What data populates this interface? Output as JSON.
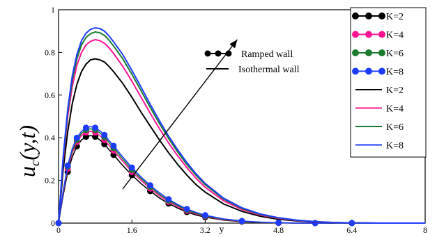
{
  "chart_data": {
    "type": "line",
    "ylabel": "u_c(y,t)",
    "ylabel_parts": {
      "var": "u",
      "sub": "c",
      "args": "(y,t)"
    },
    "xlabel": "y",
    "xlim": [
      0,
      8
    ],
    "ylim": [
      0,
      1
    ],
    "xticks": [
      "0",
      "1.6",
      "3.2",
      "4.8",
      "6.4",
      "8"
    ],
    "yticks": [
      "0",
      "0.2",
      "0.4",
      "0.6",
      "0.8",
      "1"
    ],
    "grid": false,
    "legend_placement": "top-right",
    "annotation_legend": {
      "ramped_label": "Ramped wall",
      "isothermal_label": "Isothermal wall"
    },
    "arrow": {
      "from": [
        1.4,
        0.16
      ],
      "to": [
        3.9,
        0.86
      ],
      "direction": "increasing K"
    },
    "series": [
      {
        "name": "K=2",
        "wall": "Ramped",
        "style": "line+markers",
        "color": "#000000",
        "x": [
          0,
          0.1,
          0.2,
          0.3,
          0.4,
          0.5,
          0.6,
          0.7,
          0.8,
          0.9,
          1,
          1.1,
          1.2,
          1.4,
          1.6,
          1.8,
          2,
          2.2,
          2.4,
          2.6,
          2.8,
          3,
          3.2,
          3.6,
          4,
          4.4,
          4.8,
          5.2,
          5.6,
          6,
          6.4,
          7,
          8
        ],
        "y": [
          0,
          0.13,
          0.24,
          0.31,
          0.36,
          0.39,
          0.405,
          0.41,
          0.405,
          0.39,
          0.37,
          0.345,
          0.32,
          0.27,
          0.225,
          0.185,
          0.15,
          0.118,
          0.092,
          0.07,
          0.052,
          0.038,
          0.028,
          0.014,
          0.007,
          0.003,
          0.001,
          0,
          0,
          0,
          0,
          0,
          0
        ]
      },
      {
        "name": "K=4",
        "wall": "Ramped",
        "style": "line+markers",
        "color": "#ff1493",
        "x": [
          0,
          0.1,
          0.2,
          0.3,
          0.4,
          0.5,
          0.6,
          0.7,
          0.8,
          0.9,
          1,
          1.1,
          1.2,
          1.4,
          1.6,
          1.8,
          2,
          2.2,
          2.4,
          2.6,
          2.8,
          3,
          3.2,
          3.6,
          4,
          4.4,
          4.8,
          5.2,
          5.6,
          6,
          6.4,
          7,
          8
        ],
        "y": [
          0,
          0.14,
          0.255,
          0.33,
          0.38,
          0.41,
          0.425,
          0.43,
          0.425,
          0.41,
          0.39,
          0.365,
          0.34,
          0.29,
          0.24,
          0.2,
          0.162,
          0.128,
          0.1,
          0.077,
          0.058,
          0.043,
          0.032,
          0.016,
          0.008,
          0.004,
          0.0015,
          0,
          0,
          0,
          0,
          0,
          0
        ]
      },
      {
        "name": "K=6",
        "wall": "Ramped",
        "style": "line+markers",
        "color": "#1a7a2e",
        "x": [
          0,
          0.1,
          0.2,
          0.3,
          0.4,
          0.5,
          0.6,
          0.7,
          0.8,
          0.9,
          1,
          1.1,
          1.2,
          1.4,
          1.6,
          1.8,
          2,
          2.2,
          2.4,
          2.6,
          2.8,
          3,
          3.2,
          3.6,
          4,
          4.4,
          4.8,
          5.2,
          5.6,
          6,
          6.4,
          7,
          8
        ],
        "y": [
          0,
          0.145,
          0.265,
          0.34,
          0.39,
          0.42,
          0.437,
          0.442,
          0.437,
          0.423,
          0.403,
          0.378,
          0.352,
          0.3,
          0.25,
          0.208,
          0.17,
          0.135,
          0.106,
          0.082,
          0.062,
          0.046,
          0.034,
          0.018,
          0.009,
          0.004,
          0.002,
          0,
          0,
          0,
          0,
          0,
          0
        ]
      },
      {
        "name": "K=8",
        "wall": "Ramped",
        "style": "line+markers",
        "color": "#1e3cff",
        "x": [
          0,
          0.1,
          0.2,
          0.3,
          0.4,
          0.5,
          0.6,
          0.7,
          0.8,
          0.9,
          1,
          1.1,
          1.2,
          1.4,
          1.6,
          1.8,
          2,
          2.2,
          2.4,
          2.6,
          2.8,
          3,
          3.2,
          3.6,
          4,
          4.4,
          4.8,
          5.2,
          5.6,
          6,
          6.4,
          7,
          8
        ],
        "y": [
          0,
          0.15,
          0.27,
          0.35,
          0.4,
          0.43,
          0.447,
          0.452,
          0.447,
          0.433,
          0.413,
          0.388,
          0.362,
          0.31,
          0.26,
          0.216,
          0.177,
          0.142,
          0.112,
          0.087,
          0.066,
          0.05,
          0.037,
          0.02,
          0.01,
          0.005,
          0.002,
          0,
          0,
          0,
          0,
          0,
          0
        ]
      },
      {
        "name": "K=2",
        "wall": "Isothermal",
        "style": "line",
        "color": "#000000",
        "x": [
          0,
          0.1,
          0.2,
          0.3,
          0.4,
          0.5,
          0.6,
          0.7,
          0.8,
          0.9,
          1,
          1.1,
          1.2,
          1.4,
          1.6,
          1.8,
          2,
          2.2,
          2.4,
          2.6,
          2.8,
          3,
          3.2,
          3.6,
          4,
          4.4,
          4.8,
          5.2,
          5.6,
          6,
          6.4,
          7,
          8
        ],
        "y": [
          0,
          0.25,
          0.43,
          0.56,
          0.65,
          0.71,
          0.745,
          0.765,
          0.77,
          0.765,
          0.755,
          0.735,
          0.71,
          0.655,
          0.59,
          0.52,
          0.455,
          0.39,
          0.33,
          0.275,
          0.225,
          0.18,
          0.145,
          0.09,
          0.055,
          0.032,
          0.018,
          0.01,
          0.005,
          0.002,
          0.001,
          0,
          0
        ]
      },
      {
        "name": "K=4",
        "wall": "Isothermal",
        "style": "line",
        "color": "#ff1493",
        "x": [
          0,
          0.1,
          0.2,
          0.3,
          0.4,
          0.5,
          0.6,
          0.7,
          0.8,
          0.9,
          1,
          1.1,
          1.2,
          1.4,
          1.6,
          1.8,
          2,
          2.2,
          2.4,
          2.6,
          2.8,
          3,
          3.2,
          3.6,
          4,
          4.4,
          4.8,
          5.2,
          5.6,
          6,
          6.4,
          7,
          8
        ],
        "y": [
          0,
          0.29,
          0.5,
          0.64,
          0.74,
          0.8,
          0.835,
          0.852,
          0.86,
          0.855,
          0.843,
          0.822,
          0.795,
          0.735,
          0.665,
          0.59,
          0.515,
          0.443,
          0.376,
          0.315,
          0.26,
          0.21,
          0.168,
          0.105,
          0.064,
          0.038,
          0.022,
          0.012,
          0.006,
          0.003,
          0.001,
          0,
          0
        ]
      },
      {
        "name": "K=6",
        "wall": "Isothermal",
        "style": "line",
        "color": "#1a7a2e",
        "x": [
          0,
          0.1,
          0.2,
          0.3,
          0.4,
          0.5,
          0.6,
          0.7,
          0.8,
          0.9,
          1,
          1.1,
          1.2,
          1.4,
          1.6,
          1.8,
          2,
          2.2,
          2.4,
          2.6,
          2.8,
          3,
          3.2,
          3.6,
          4,
          4.4,
          4.8,
          5.2,
          5.6,
          6,
          6.4,
          7,
          8
        ],
        "y": [
          0,
          0.3,
          0.52,
          0.67,
          0.77,
          0.835,
          0.87,
          0.888,
          0.896,
          0.892,
          0.88,
          0.858,
          0.83,
          0.77,
          0.698,
          0.62,
          0.542,
          0.467,
          0.397,
          0.333,
          0.275,
          0.224,
          0.18,
          0.113,
          0.069,
          0.041,
          0.024,
          0.013,
          0.007,
          0.003,
          0.001,
          0,
          0
        ]
      },
      {
        "name": "K=8",
        "wall": "Isothermal",
        "style": "line",
        "color": "#1e3cff",
        "x": [
          0,
          0.1,
          0.2,
          0.3,
          0.4,
          0.5,
          0.6,
          0.7,
          0.8,
          0.9,
          1,
          1.1,
          1.2,
          1.4,
          1.6,
          1.8,
          2,
          2.2,
          2.4,
          2.6,
          2.8,
          3,
          3.2,
          3.6,
          4,
          4.4,
          4.8,
          5.2,
          5.6,
          6,
          6.4,
          7,
          8
        ],
        "y": [
          0,
          0.31,
          0.535,
          0.69,
          0.79,
          0.855,
          0.89,
          0.908,
          0.915,
          0.912,
          0.9,
          0.878,
          0.85,
          0.79,
          0.716,
          0.637,
          0.557,
          0.48,
          0.408,
          0.343,
          0.284,
          0.231,
          0.186,
          0.117,
          0.072,
          0.043,
          0.025,
          0.014,
          0.007,
          0.003,
          0.001,
          0,
          0
        ]
      }
    ]
  }
}
